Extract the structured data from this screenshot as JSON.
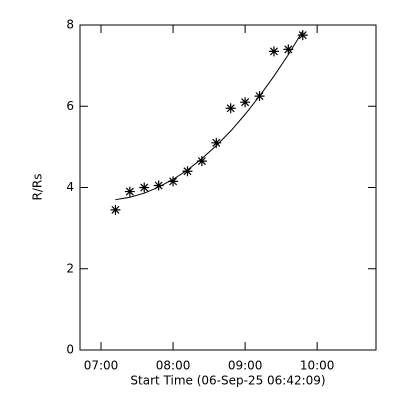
{
  "chart_data": {
    "type": "scatter",
    "ylabel": "R/Rs",
    "xlabel": "Start Time (06-Sep-25 06:42:09)",
    "xlim": [
      402.5,
      649
    ],
    "xticks": [
      {
        "value": 420,
        "label": "07:00"
      },
      {
        "value": 480,
        "label": "08:00"
      },
      {
        "value": 540,
        "label": "09:00"
      },
      {
        "value": 600,
        "label": "10:00"
      }
    ],
    "ylim": [
      0,
      8
    ],
    "yticks": [
      0,
      2,
      4,
      6,
      8
    ],
    "color": "#000000",
    "series": [
      {
        "type": "scatter",
        "x": [
          432,
          444,
          456,
          468,
          480,
          492,
          504,
          516,
          528,
          540,
          552,
          564,
          576,
          588
        ],
        "values": [
          3.45,
          3.9,
          4.0,
          4.05,
          4.15,
          4.4,
          4.65,
          5.1,
          5.95,
          6.1,
          6.25,
          7.35,
          7.4,
          7.75
        ]
      },
      {
        "type": "line",
        "x": [
          432,
          444,
          456,
          468,
          480,
          492,
          504,
          516,
          528,
          540,
          552,
          564,
          576,
          588
        ],
        "values": [
          3.7,
          3.76,
          3.86,
          4.01,
          4.2,
          4.43,
          4.71,
          5.03,
          5.39,
          5.8,
          6.25,
          6.74,
          7.27,
          7.85
        ]
      }
    ]
  }
}
